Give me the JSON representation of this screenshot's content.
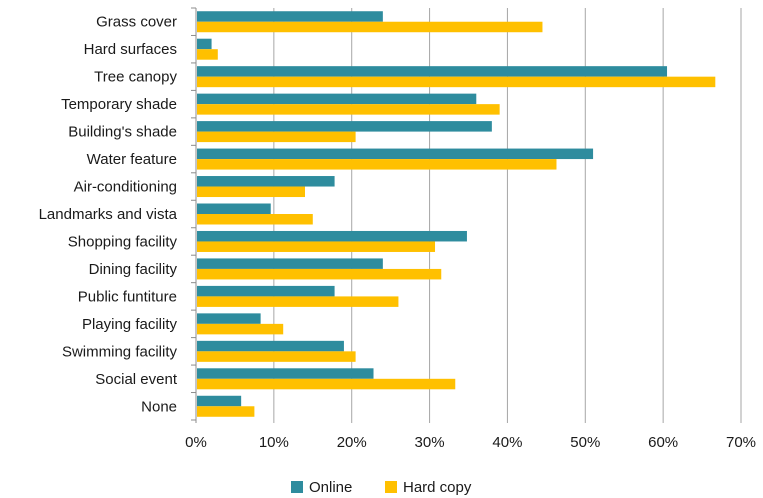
{
  "chart_data": {
    "type": "bar",
    "orientation": "horizontal",
    "title": "",
    "xlabel": "",
    "ylabel": "",
    "categories": [
      "Grass cover",
      "Hard surfaces",
      "Tree canopy",
      "Temporary shade",
      "Building's shade",
      "Water feature",
      "Air-conditioning",
      "Landmarks and vista",
      "Shopping facility",
      "Dining facility",
      "Public funtiture",
      "Playing facility",
      "Swimming facility",
      "Social event",
      "None"
    ],
    "series": [
      {
        "name": "Online",
        "color": "#2E8C9E",
        "values": [
          24,
          2,
          60.5,
          36,
          38,
          51,
          17.8,
          9.6,
          34.8,
          24,
          17.8,
          8.3,
          19,
          22.8,
          5.8
        ]
      },
      {
        "name": "Hard copy",
        "color": "#FFC000",
        "values": [
          44.5,
          2.8,
          66.7,
          39,
          20.5,
          46.3,
          14,
          15,
          30.7,
          31.5,
          26,
          11.2,
          20.5,
          33.3,
          7.5
        ]
      }
    ],
    "xlim": [
      0,
      70
    ],
    "xticks": [
      "0%",
      "10%",
      "20%",
      "30%",
      "40%",
      "50%",
      "60%",
      "70%"
    ],
    "grid": true,
    "legend_position": "bottom"
  }
}
